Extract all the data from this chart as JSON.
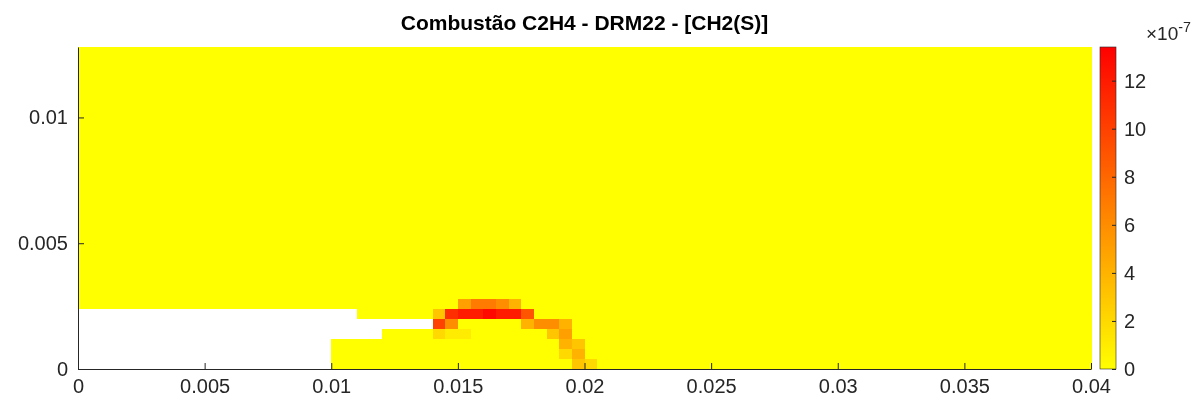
{
  "chart_data": {
    "type": "heatmap",
    "title": "Combustão C2H4 - DRM22 - [CH2(S)]",
    "clabel": "×10$^{-7}$",
    "xlim": [
      0,
      0.04
    ],
    "ylim": [
      0,
      0.0128
    ],
    "xticks": [
      0,
      0.005,
      0.01,
      0.015,
      0.02,
      0.025,
      0.03,
      0.035,
      0.04
    ],
    "yticks": [
      0,
      0.005,
      0.01
    ],
    "clim": [
      0,
      13.4
    ],
    "cticks": [
      0,
      2,
      4,
      6,
      8,
      10,
      12
    ],
    "cells": [
      [
        0,
        0,
        0,
        0,
        0,
        0,
        0,
        0,
        0,
        0,
        0,
        0,
        0,
        0,
        0,
        0,
        0,
        0,
        0,
        0,
        0,
        0,
        0,
        0,
        0,
        0,
        0,
        0,
        0,
        0,
        0,
        0,
        0,
        0,
        0,
        0,
        0,
        0,
        0,
        0,
        0,
        0,
        0,
        0,
        0,
        0,
        0,
        0,
        0,
        0,
        0,
        0,
        0,
        0,
        0,
        0,
        0,
        0,
        0,
        0,
        0,
        0,
        0,
        0,
        0,
        0,
        0,
        0,
        0,
        0,
        0,
        0,
        0,
        0,
        0,
        0,
        0,
        0,
        0,
        0
      ],
      [
        0,
        0,
        0,
        0,
        0,
        0,
        0,
        0,
        0,
        0,
        0,
        0,
        0,
        0,
        0,
        0,
        0,
        0,
        0,
        0,
        0,
        0,
        0,
        0,
        0,
        0,
        0,
        0,
        0,
        0,
        0,
        0,
        0,
        0,
        0,
        0,
        0,
        0,
        0,
        0,
        0,
        0,
        0,
        0,
        0,
        0,
        0,
        0,
        0,
        0,
        0,
        0,
        0,
        0,
        0,
        0,
        0,
        0,
        0,
        0,
        0,
        0,
        0,
        0,
        0,
        0,
        0,
        0,
        0,
        0,
        0,
        0,
        0,
        0,
        0,
        0,
        0,
        0,
        0,
        0
      ],
      [
        0,
        0,
        0,
        0,
        0,
        0,
        0,
        0,
        0,
        0,
        0,
        0,
        0,
        0,
        0,
        0,
        0,
        0,
        0,
        0,
        0,
        0,
        0,
        0,
        0,
        0,
        0,
        0,
        0,
        0,
        0,
        0,
        0,
        0,
        0,
        0,
        0,
        0,
        0,
        0,
        0,
        0,
        0,
        0,
        0,
        0,
        0,
        0,
        0,
        0,
        0,
        0,
        0,
        0,
        0,
        0,
        0,
        0,
        0,
        0,
        0,
        0,
        0,
        0,
        0,
        0,
        0,
        0,
        0,
        0,
        0,
        0,
        0,
        0,
        0,
        0,
        0,
        0,
        0,
        0
      ],
      [
        0,
        0,
        0,
        0,
        0,
        0,
        0,
        0,
        0,
        0,
        0,
        0,
        0,
        0,
        0,
        0,
        0,
        0,
        0,
        0,
        0,
        0,
        0,
        0,
        0,
        0,
        0,
        0,
        0,
        0,
        0,
        0,
        0,
        0,
        0,
        0,
        0,
        0,
        0,
        0,
        0,
        0,
        0,
        0,
        0,
        0,
        0,
        0,
        0,
        0,
        0,
        0,
        0,
        0,
        0,
        0,
        0,
        0,
        0,
        0,
        0,
        0,
        0,
        0,
        0,
        0,
        0,
        0,
        0,
        0,
        0,
        0,
        0,
        0,
        0,
        0,
        0,
        0,
        0,
        0
      ],
      [
        0,
        0,
        0,
        0,
        0,
        0,
        0,
        0,
        0,
        0,
        0,
        0,
        0,
        0,
        0,
        0,
        0,
        0,
        0,
        0,
        0,
        0,
        0,
        0,
        0,
        0,
        0,
        0,
        0,
        0,
        0,
        0,
        0,
        0,
        0,
        0,
        0,
        0,
        0,
        0,
        0,
        0,
        0,
        0,
        0,
        0,
        0,
        0,
        0,
        0,
        0,
        0,
        0,
        0,
        0,
        0,
        0,
        0,
        0,
        0,
        0,
        0,
        0,
        0,
        0,
        0,
        0,
        0,
        0,
        0,
        0,
        0,
        0,
        0,
        0,
        0,
        0,
        0,
        0,
        0
      ],
      [
        0,
        0,
        0,
        0,
        0,
        0,
        0,
        0,
        0,
        0,
        0,
        0,
        0,
        0,
        0,
        0,
        0,
        0,
        0,
        0,
        0,
        0,
        0,
        0,
        0,
        0,
        0,
        0,
        0,
        0,
        0,
        0,
        0,
        0,
        0,
        0,
        0,
        0,
        0,
        0,
        0,
        0,
        0,
        0,
        0,
        0,
        0,
        0,
        0,
        0,
        0,
        0,
        0,
        0,
        0,
        0,
        0,
        0,
        0,
        0,
        0,
        0,
        0,
        0,
        0,
        0,
        0,
        0,
        0,
        0,
        0,
        0,
        0,
        0,
        0,
        0,
        0,
        0,
        0,
        0
      ],
      [
        0,
        0,
        0,
        0,
        0,
        0,
        0,
        0,
        0,
        0,
        0,
        0,
        0,
        0,
        0,
        0,
        0,
        0,
        0,
        0,
        0,
        0,
        0,
        0,
        0,
        0,
        0,
        0,
        0,
        0,
        0,
        0,
        0,
        0,
        0,
        0,
        0,
        0,
        0,
        0,
        0,
        0,
        0,
        0,
        0,
        0,
        0,
        0,
        0,
        0,
        0,
        0,
        0,
        0,
        0,
        0,
        0,
        0,
        0,
        0,
        0,
        0,
        0,
        0,
        0,
        0,
        0,
        0,
        0,
        0,
        0,
        0,
        0,
        0,
        0,
        0,
        0,
        0,
        0,
        0
      ],
      [
        0,
        0,
        0,
        0,
        0,
        0,
        0,
        0,
        0,
        0,
        0,
        0,
        0,
        0,
        0,
        0,
        0,
        0,
        0,
        0,
        0,
        0,
        0,
        0,
        0,
        0,
        0,
        0,
        0,
        0,
        0,
        0,
        0,
        0,
        0,
        0,
        0,
        0,
        0,
        0,
        0,
        0,
        0,
        0,
        0,
        0,
        0,
        0,
        0,
        0,
        0,
        0,
        0,
        0,
        0,
        0,
        0,
        0,
        0,
        0,
        0,
        0,
        0,
        0,
        0,
        0,
        0,
        0,
        0,
        0,
        0,
        0,
        0,
        0,
        0,
        0,
        0,
        0,
        0,
        0
      ],
      [
        0,
        0,
        0,
        0,
        0,
        0,
        0,
        0,
        0,
        0,
        0,
        0,
        0,
        0,
        0,
        0,
        0,
        0,
        0,
        0,
        0,
        0,
        0,
        0,
        0,
        0,
        0,
        0,
        0,
        0,
        0,
        0,
        0,
        0,
        0,
        0,
        0,
        0,
        0,
        0,
        0,
        0,
        0,
        0,
        0,
        0,
        0,
        0,
        0,
        0,
        0,
        0,
        0,
        0,
        0,
        0,
        0,
        0,
        0,
        0,
        0,
        0,
        0,
        0,
        0,
        0,
        0,
        0,
        0,
        0,
        0,
        0,
        0,
        0,
        0,
        0,
        0,
        0,
        0,
        0
      ],
      [
        0,
        0,
        0,
        0,
        0,
        0,
        0,
        0,
        0,
        0,
        0,
        0,
        0,
        0,
        0,
        0,
        0,
        0,
        0,
        0,
        0,
        0,
        0,
        0,
        0,
        0,
        0,
        0,
        0,
        0,
        0,
        0,
        0,
        0,
        0,
        0,
        0,
        0,
        0,
        0,
        0,
        0,
        0,
        0,
        0,
        0,
        0,
        0,
        0,
        0,
        0,
        0,
        0,
        0,
        0,
        0,
        0,
        0,
        0,
        0,
        0,
        0,
        0,
        0,
        0,
        0,
        0,
        0,
        0,
        0,
        0,
        0,
        0,
        0,
        0,
        0,
        0,
        0,
        0,
        0
      ],
      [
        0,
        0,
        0,
        0,
        0,
        0,
        0,
        0,
        0,
        0,
        0,
        0,
        0,
        0,
        0,
        0,
        0,
        0,
        0,
        0,
        0,
        0,
        0,
        0,
        0,
        0,
        0,
        0,
        0,
        0,
        0,
        0,
        0,
        0,
        0,
        0,
        0,
        0,
        0,
        0,
        0,
        0,
        0,
        0,
        0,
        0,
        0,
        0,
        0,
        0,
        0,
        0,
        0,
        0,
        0,
        0,
        0,
        0,
        0,
        0,
        0,
        0,
        0,
        0,
        0,
        0,
        0,
        0,
        0,
        0,
        0,
        0,
        0,
        0,
        0,
        0,
        0,
        0,
        0,
        0
      ],
      [
        0,
        0,
        0,
        0,
        0,
        0,
        0,
        0,
        0,
        0,
        0,
        0,
        0,
        0,
        0,
        0,
        0,
        0,
        0,
        0,
        0,
        0,
        0,
        0,
        0,
        0,
        0,
        0,
        0,
        0,
        0,
        0,
        0,
        0,
        0,
        0,
        0,
        0,
        0,
        0,
        0,
        0,
        0,
        0,
        0,
        0,
        0,
        0,
        0,
        0,
        0,
        0,
        0,
        0,
        0,
        0,
        0,
        0,
        0,
        0,
        0,
        0,
        0,
        0,
        0,
        0,
        0,
        0,
        0,
        0,
        0,
        0,
        0,
        0,
        0,
        0,
        0,
        0,
        0,
        0
      ],
      [
        0,
        0,
        0,
        0,
        0,
        0,
        0,
        0,
        0,
        0,
        0,
        0,
        0,
        0,
        0,
        0,
        0,
        0,
        0,
        0,
        0,
        0,
        0,
        0,
        0,
        0,
        0,
        0,
        0,
        0,
        0,
        0,
        0,
        0,
        0,
        0,
        0,
        0,
        0,
        0,
        0,
        0,
        0,
        0,
        0,
        0,
        0,
        0,
        0,
        0,
        0,
        0,
        0,
        0,
        0,
        0,
        0,
        0,
        0,
        0,
        0,
        0,
        0,
        0,
        0,
        0,
        0,
        0,
        0,
        0,
        0,
        0,
        0,
        0,
        0,
        0,
        0,
        0,
        0,
        0
      ],
      [
        0,
        0,
        0,
        0,
        0,
        0,
        0,
        0,
        0,
        0,
        0,
        0,
        0,
        0,
        0,
        0,
        0,
        0,
        0,
        0,
        0,
        0,
        0,
        0,
        0,
        0,
        0,
        0,
        0,
        0,
        0,
        0,
        0,
        0,
        0,
        0,
        0,
        0,
        0,
        0,
        0,
        0,
        0,
        0,
        0,
        0,
        0,
        0,
        0,
        0,
        0,
        0,
        0,
        0,
        0,
        0,
        0,
        0,
        0,
        0,
        0,
        0,
        0,
        0,
        0,
        0,
        0,
        0,
        0,
        0,
        0,
        0,
        0,
        0,
        0,
        0,
        0,
        0,
        0,
        0
      ],
      [
        0,
        0,
        0,
        0,
        0,
        0,
        0,
        0,
        0,
        0,
        0,
        0,
        0,
        0,
        0,
        0,
        0,
        0,
        0,
        0,
        0,
        0,
        0,
        0,
        0,
        0,
        0,
        0,
        0,
        0,
        0,
        0,
        0,
        0,
        0,
        0,
        0,
        0,
        0,
        0,
        0,
        0,
        0,
        0,
        0,
        0,
        0,
        0,
        0,
        0,
        0,
        0,
        0,
        0,
        0,
        0,
        0,
        0,
        0,
        0,
        0,
        0,
        0,
        0,
        0,
        0,
        0,
        0,
        0,
        0,
        0,
        0,
        0,
        0,
        0,
        0,
        0,
        0,
        0,
        0
      ],
      [
        0,
        0,
        0,
        0,
        0,
        0,
        0,
        0,
        0,
        0,
        0,
        0,
        0,
        0,
        0,
        0,
        0,
        0,
        0,
        0,
        0,
        0,
        0,
        0,
        0,
        0,
        0,
        0,
        0,
        0,
        0,
        0,
        0,
        0,
        0,
        0,
        0,
        0,
        0,
        0,
        0,
        0,
        0,
        0,
        0,
        0,
        0,
        0,
        0,
        0,
        0,
        0,
        0,
        0,
        0,
        0,
        0,
        0,
        0,
        0,
        0,
        0,
        0,
        0,
        0,
        0,
        0,
        0,
        0,
        0,
        0,
        0,
        0,
        0,
        0,
        0,
        0,
        0,
        0,
        0
      ],
      [
        0,
        0,
        0,
        0,
        0,
        0,
        0,
        0,
        0,
        0,
        0,
        0,
        0,
        0,
        0,
        0,
        0,
        0,
        0,
        0,
        0,
        0,
        0,
        0,
        0,
        0,
        0,
        0,
        0,
        0,
        0,
        0,
        0,
        0,
        0,
        0,
        0,
        0,
        0,
        0,
        0,
        0,
        0,
        0,
        0,
        0,
        0,
        0,
        0,
        0,
        0,
        0,
        0,
        0,
        0,
        0,
        0,
        0,
        0,
        0,
        0,
        0,
        0,
        0,
        0,
        0,
        0,
        0,
        0,
        0,
        0,
        0,
        0,
        0,
        0,
        0,
        0,
        0,
        0,
        0
      ],
      [
        0,
        0,
        0,
        0,
        0,
        0,
        0,
        0,
        0,
        0,
        0,
        0,
        0,
        0,
        0,
        0,
        0,
        0,
        0,
        0,
        0,
        0,
        0,
        0,
        0,
        0,
        0,
        0,
        0,
        0,
        0,
        0,
        0,
        0,
        0,
        0,
        0,
        0,
        0,
        0,
        0,
        0,
        0,
        0,
        0,
        0,
        0,
        0,
        0,
        0,
        0,
        0,
        0,
        0,
        0,
        0,
        0,
        0,
        0,
        0,
        0,
        0,
        0,
        0,
        0,
        0,
        0,
        0,
        0,
        0,
        0,
        0,
        0,
        0,
        0,
        0,
        0,
        0,
        0,
        0
      ],
      [
        0,
        0,
        0,
        0,
        0,
        0,
        0,
        0,
        0,
        0,
        0,
        0,
        0,
        0,
        0,
        0,
        0,
        0,
        0,
        0,
        0,
        0,
        0,
        0,
        0,
        0,
        0,
        0,
        0,
        0,
        0,
        0,
        0,
        0,
        0,
        0,
        0,
        0,
        0,
        0,
        0,
        0,
        0,
        0,
        0,
        0,
        0,
        0,
        0,
        0,
        0,
        0,
        0,
        0,
        0,
        0,
        0,
        0,
        0,
        0,
        0,
        0,
        0,
        0,
        0,
        0,
        0,
        0,
        0,
        0,
        0,
        0,
        0,
        0,
        0,
        0,
        0,
        0,
        0,
        0
      ],
      [
        0,
        0,
        0,
        0,
        0,
        0,
        0,
        0,
        0,
        0,
        0,
        0,
        0,
        0,
        0,
        0,
        0,
        0,
        0,
        0,
        0,
        0,
        0,
        0,
        0,
        0,
        0,
        0,
        0,
        0,
        0,
        0,
        0,
        0,
        0,
        0,
        0,
        0,
        0,
        0,
        0,
        0,
        0,
        0,
        0,
        0,
        0,
        0,
        0,
        0,
        0,
        0,
        0,
        0,
        0,
        0,
        0,
        0,
        0,
        0,
        0,
        0,
        0,
        0,
        0,
        0,
        0,
        0,
        0,
        0,
        0,
        0,
        0,
        0,
        0,
        0,
        0,
        0,
        0,
        0
      ],
      [
        0,
        0,
        0,
        0,
        0,
        0,
        0,
        0,
        0,
        0,
        0,
        0,
        0,
        0,
        0,
        0,
        0,
        0,
        0,
        0,
        0,
        0,
        0,
        0,
        0,
        0,
        0,
        0,
        0,
        0,
        0,
        0,
        0,
        0,
        0,
        0,
        0,
        0,
        0,
        0,
        0,
        0,
        0,
        0,
        0,
        0,
        0,
        0,
        0,
        0,
        0,
        0,
        0,
        0,
        0,
        0,
        0,
        0,
        0,
        0,
        0,
        0,
        0,
        0,
        0,
        0,
        0,
        0,
        0,
        0,
        0,
        0,
        0,
        0,
        0,
        0,
        0,
        0,
        0,
        0
      ],
      [
        0,
        0,
        0,
        0,
        0,
        0,
        0,
        0,
        0,
        0,
        0,
        0,
        0,
        0,
        0,
        0,
        0,
        0,
        0,
        0,
        0,
        0,
        0,
        0,
        0,
        0,
        0,
        0,
        0,
        0,
        0,
        0,
        0,
        0,
        0,
        0,
        0,
        0,
        0,
        0,
        0,
        0,
        0,
        0,
        0,
        0,
        0,
        0,
        0,
        0,
        0,
        0,
        0,
        0,
        0,
        0,
        0,
        0,
        0,
        0,
        0,
        0,
        0,
        0,
        0,
        0,
        0,
        0,
        0,
        0,
        0,
        0,
        0,
        0,
        0,
        0,
        0,
        0,
        0,
        0
      ],
      [
        0,
        0,
        0,
        0,
        0,
        0,
        0,
        0,
        0,
        0,
        0,
        0,
        0,
        0,
        0,
        0,
        0,
        0,
        0,
        0,
        0,
        0,
        0,
        0,
        0,
        0,
        0,
        0,
        0,
        0,
        0,
        0,
        0,
        0,
        0,
        0,
        0,
        0,
        0,
        0,
        0,
        0,
        0,
        0,
        0,
        0,
        0,
        0,
        0,
        0,
        0,
        0,
        0,
        0,
        0,
        0,
        0,
        0,
        0,
        0,
        0,
        0,
        0,
        0,
        0,
        0,
        0,
        0,
        0,
        0,
        0,
        0,
        0,
        0,
        0,
        0,
        0,
        0,
        0,
        0
      ],
      [
        0,
        0,
        0,
        0,
        0,
        0,
        0,
        0,
        0,
        0,
        0,
        0,
        0,
        0,
        0,
        0,
        0,
        0,
        0,
        0,
        0,
        0,
        0,
        0,
        0,
        0,
        0,
        0,
        0,
        0,
        0,
        0,
        0,
        0,
        0,
        0,
        0,
        0,
        0,
        0,
        0,
        0,
        0,
        0,
        0,
        0,
        0,
        0,
        0,
        0,
        0,
        0,
        0,
        0,
        0,
        0,
        0,
        0,
        0,
        0,
        0,
        0,
        0,
        0,
        0,
        0,
        0,
        0,
        0,
        0,
        0,
        0,
        0,
        0,
        0,
        0,
        0,
        0,
        0,
        0
      ],
      [
        0,
        0,
        0,
        0,
        0,
        0,
        0,
        0,
        0,
        0,
        0,
        0,
        0,
        0,
        0,
        0,
        0,
        0,
        0,
        0,
        0,
        0,
        0,
        0,
        0,
        0,
        0,
        0,
        0,
        0,
        0,
        0,
        0,
        0,
        0,
        0,
        0,
        0,
        0,
        0,
        0,
        0,
        0,
        0,
        0,
        0,
        0,
        0,
        0,
        0,
        0,
        0,
        0,
        0,
        0,
        0,
        0,
        0,
        0,
        0,
        0,
        0,
        0,
        0,
        0,
        0,
        0,
        0,
        0,
        0,
        0,
        0,
        0,
        0,
        0,
        0,
        0,
        0,
        0,
        0
      ],
      [
        0,
        0,
        0,
        0,
        0,
        0,
        0,
        0,
        0,
        0,
        0,
        0,
        0,
        0,
        0,
        0,
        0,
        0,
        0,
        0,
        0,
        0,
        0,
        0,
        0,
        0,
        0,
        0,
        0,
        0,
        5,
        7,
        7,
        6,
        4,
        0,
        0,
        0,
        0,
        0,
        0,
        0,
        0,
        0,
        0,
        0,
        0,
        0,
        0,
        0,
        0,
        0,
        0,
        0,
        0,
        0,
        0,
        0,
        0,
        0,
        0,
        0,
        0,
        0,
        0,
        0,
        0,
        0,
        0,
        0,
        0,
        0,
        0,
        0,
        0,
        0,
        0,
        0,
        0,
        0
      ],
      [
        null,
        null,
        null,
        null,
        null,
        null,
        null,
        null,
        null,
        null,
        null,
        null,
        null,
        null,
        null,
        null,
        null,
        null,
        null,
        null,
        null,
        null,
        0,
        0,
        0,
        0,
        0,
        0,
        3,
        11,
        12,
        12,
        13,
        12,
        12,
        9,
        0,
        0,
        0,
        0,
        0,
        0,
        0,
        0,
        0,
        0,
        0,
        0,
        0,
        0,
        0,
        0,
        0,
        0,
        0,
        0,
        0,
        0,
        0,
        0,
        0,
        0,
        0,
        0,
        0,
        0,
        0,
        0,
        0,
        0,
        0,
        0,
        0,
        0,
        0,
        0,
        0,
        0,
        0,
        0
      ],
      [
        null,
        null,
        null,
        null,
        null,
        null,
        null,
        null,
        null,
        null,
        null,
        null,
        null,
        null,
        null,
        null,
        null,
        null,
        null,
        null,
        null,
        null,
        null,
        null,
        null,
        null,
        null,
        null,
        10,
        6,
        0,
        0,
        0,
        0,
        0,
        4,
        6,
        6,
        4,
        0,
        0,
        0,
        0,
        0,
        0,
        0,
        0,
        0,
        0,
        0,
        0,
        0,
        0,
        0,
        0,
        0,
        0,
        0,
        0,
        0,
        0,
        0,
        0,
        0,
        0,
        0,
        0,
        0,
        0,
        0,
        0,
        0,
        0,
        0,
        0,
        0,
        0,
        0,
        0,
        0
      ],
      [
        null,
        null,
        null,
        null,
        null,
        null,
        null,
        null,
        null,
        null,
        null,
        null,
        null,
        null,
        null,
        null,
        null,
        null,
        null,
        null,
        null,
        null,
        null,
        null,
        0,
        0,
        0,
        0,
        2,
        1,
        1,
        0,
        0,
        0,
        0,
        0,
        0,
        3,
        5,
        0,
        0,
        0,
        0,
        0,
        0,
        0,
        0,
        0,
        0,
        0,
        0,
        0,
        0,
        0,
        0,
        0,
        0,
        0,
        0,
        0,
        0,
        0,
        0,
        0,
        0,
        0,
        0,
        0,
        0,
        0,
        0,
        0,
        0,
        0,
        0,
        0,
        0,
        0,
        0,
        0
      ],
      [
        null,
        null,
        null,
        null,
        null,
        null,
        null,
        null,
        null,
        null,
        null,
        null,
        null,
        null,
        null,
        null,
        null,
        null,
        null,
        null,
        0,
        0,
        0,
        0,
        0,
        0,
        0,
        0,
        0,
        0,
        0,
        0,
        0,
        0,
        0,
        0,
        0,
        0,
        4,
        3,
        0,
        0,
        0,
        0,
        0,
        0,
        0,
        0,
        0,
        0,
        0,
        0,
        0,
        0,
        0,
        0,
        0,
        0,
        0,
        0,
        0,
        0,
        0,
        0,
        0,
        0,
        0,
        0,
        0,
        0,
        0,
        0,
        0,
        0,
        0,
        0,
        0,
        0,
        0,
        0
      ],
      [
        null,
        null,
        null,
        null,
        null,
        null,
        null,
        null,
        null,
        null,
        null,
        null,
        null,
        null,
        null,
        null,
        null,
        null,
        null,
        null,
        0,
        0,
        0,
        0,
        0,
        0,
        0,
        0,
        0,
        0,
        0,
        0,
        0,
        0,
        0,
        0,
        0,
        0,
        2,
        4,
        0,
        0,
        0,
        0,
        0,
        0,
        0,
        0,
        0,
        0,
        0,
        0,
        0,
        0,
        0,
        0,
        0,
        0,
        0,
        0,
        0,
        0,
        0,
        0,
        0,
        0,
        0,
        0,
        0,
        0,
        0,
        0,
        0,
        0,
        0,
        0,
        0,
        0,
        0,
        0
      ],
      [
        null,
        null,
        null,
        null,
        null,
        null,
        null,
        null,
        null,
        null,
        null,
        null,
        null,
        null,
        null,
        null,
        null,
        null,
        null,
        null,
        0,
        0,
        0,
        0,
        0,
        0,
        0,
        0,
        0,
        0,
        0,
        0,
        0,
        0,
        0,
        0,
        0,
        0,
        0,
        3,
        2,
        0,
        0,
        0,
        0,
        0,
        0,
        0,
        0,
        0,
        0,
        0,
        0,
        0,
        0,
        0,
        0,
        0,
        0,
        0,
        0,
        0,
        0,
        0,
        0,
        0,
        0,
        0,
        0,
        0,
        0,
        0,
        0,
        0,
        0,
        0,
        0,
        0,
        0,
        0
      ]
    ]
  }
}
